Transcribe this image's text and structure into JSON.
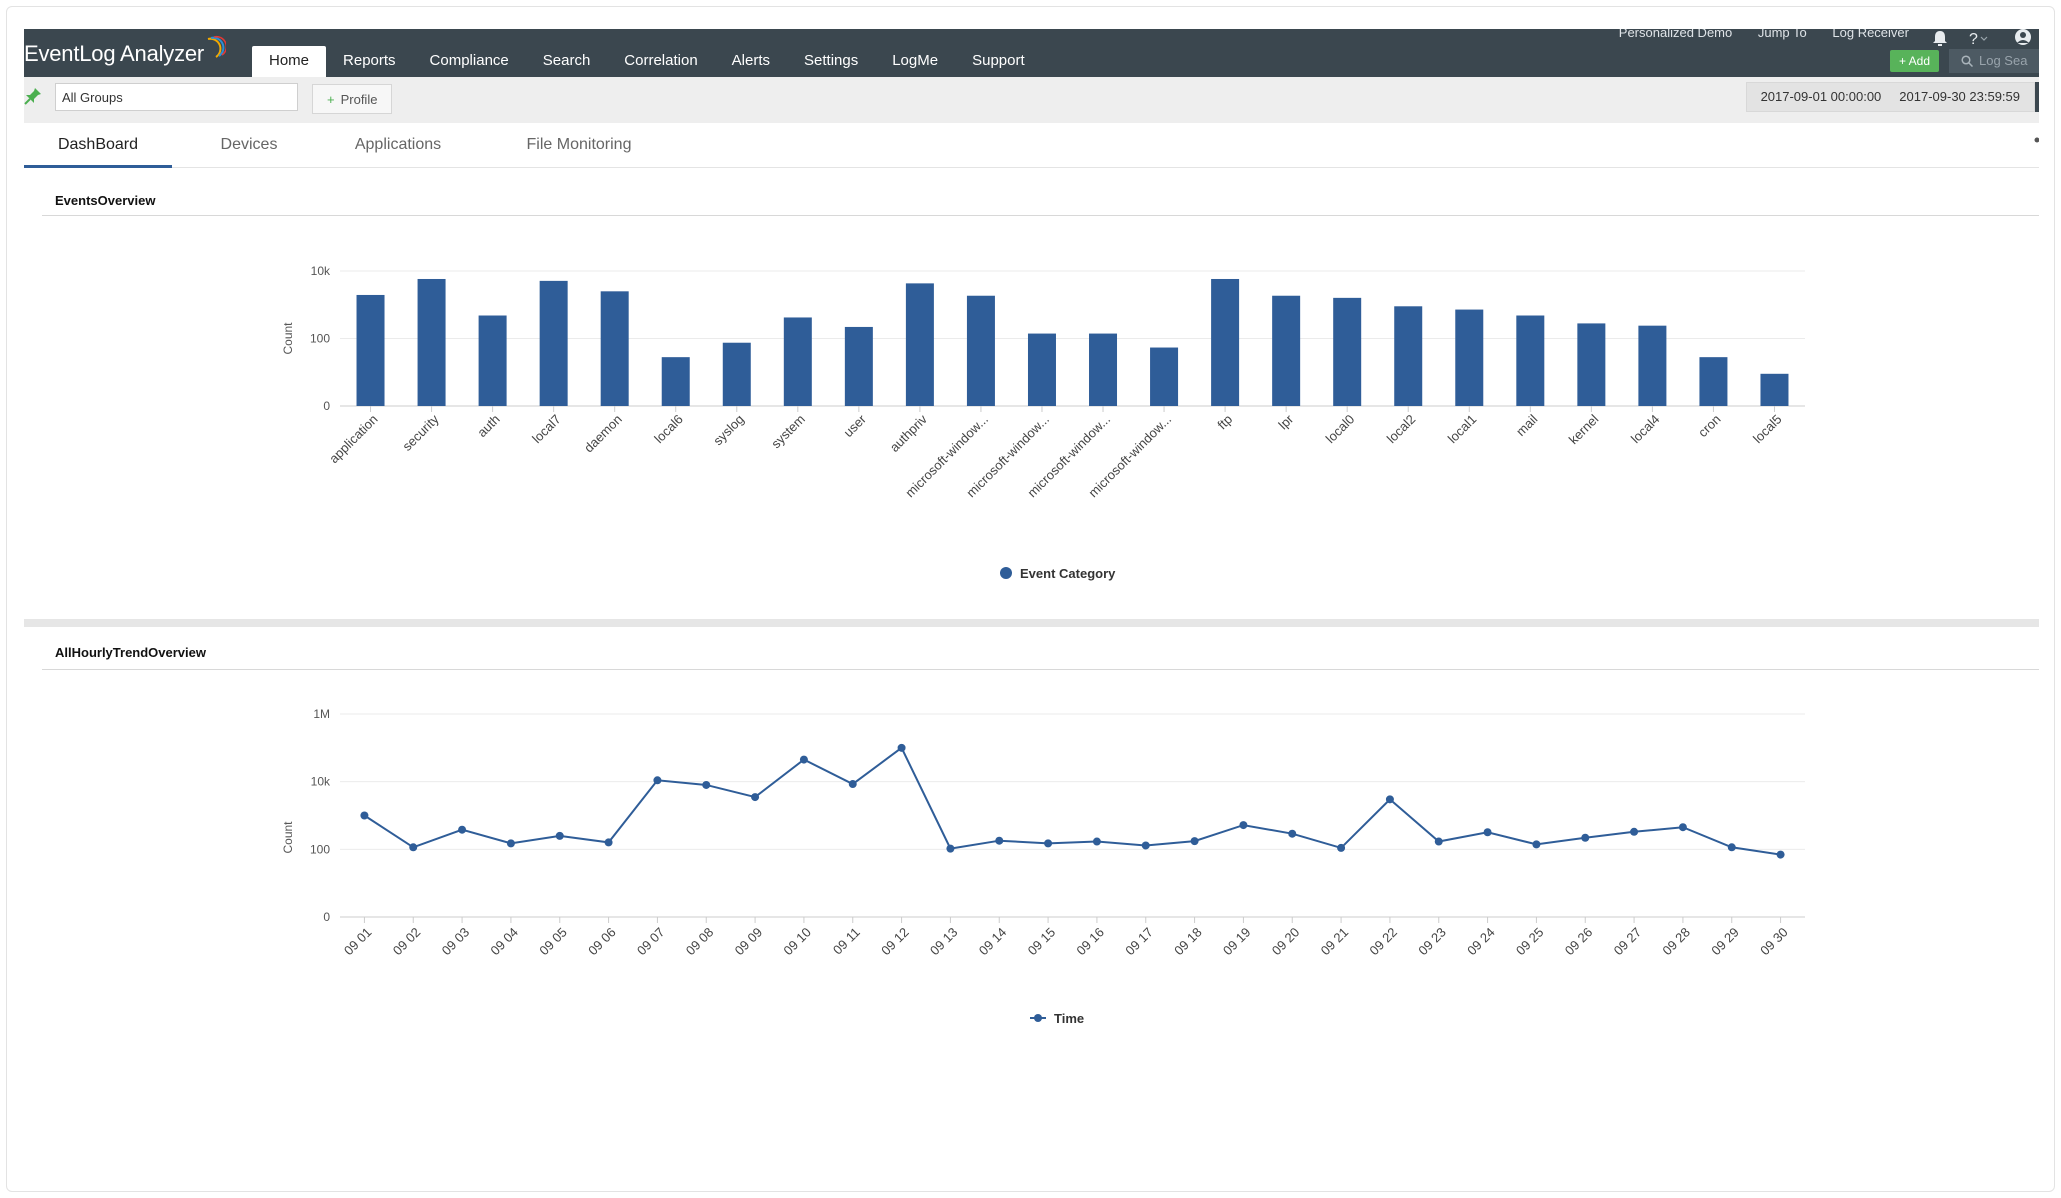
{
  "app": {
    "title": "EventLog Analyzer"
  },
  "top_links": [
    "Personalized Demo",
    "Jump To",
    "Log Receiver"
  ],
  "nav": [
    "Home",
    "Reports",
    "Compliance",
    "Search",
    "Correlation",
    "Alerts",
    "Settings",
    "LogMe",
    "Support"
  ],
  "toolbar": {
    "add_label": "Add",
    "search_placeholder": "Log Sea",
    "group_value": "All Groups",
    "profile_label": "Profile",
    "date_from": "2017-09-01 00:00:00",
    "date_to": "2017-09-30 23:59:59"
  },
  "tabs": [
    "DashBoard",
    "Devices",
    "Applications",
    "File Monitoring"
  ],
  "colors": {
    "series": "#2f5d98",
    "topbar": "#3b474f",
    "add": "#58b35a"
  },
  "icons": [
    "pin-icon",
    "plus-icon",
    "bell-icon",
    "help-icon",
    "user-icon",
    "search-icon"
  ],
  "chart_data": [
    {
      "title": "EventsOverview",
      "type": "bar",
      "ylabel": "Count",
      "yscale": "log",
      "yticks": [
        "0",
        "100",
        "10k"
      ],
      "ylim": [
        1,
        10000
      ],
      "categories": [
        "application",
        "security",
        "auth",
        "local7",
        "daemon",
        "local6",
        "syslog",
        "system",
        "user",
        "authpriv",
        "microsoft-window...",
        "microsoft-window...",
        "microsoft-window...",
        "microsoft-window...",
        "ftp",
        "lpr",
        "local0",
        "local2",
        "local1",
        "mail",
        "kernel",
        "local4",
        "cron",
        "local5"
      ],
      "series": [
        {
          "name": "Event Category",
          "values": [
            1950,
            5800,
            480,
            5100,
            2500,
            28,
            75,
            420,
            220,
            4300,
            1850,
            140,
            140,
            54,
            5800,
            1850,
            1600,
            900,
            720,
            480,
            280,
            240,
            28,
            9
          ]
        }
      ],
      "legend": "bottom"
    },
    {
      "title": "AllHourlyTrendOverview",
      "type": "line",
      "ylabel": "Count",
      "yscale": "log",
      "yticks": [
        "0",
        "100",
        "10k",
        "1M"
      ],
      "ylim": [
        1,
        1000000
      ],
      "x": [
        "09 01",
        "09 02",
        "09 03",
        "09 04",
        "09 05",
        "09 06",
        "09 07",
        "09 08",
        "09 09",
        "09 10",
        "09 11",
        "09 12",
        "09 13",
        "09 14",
        "09 15",
        "09 16",
        "09 17",
        "09 18",
        "09 19",
        "09 20",
        "09 21",
        "09 22",
        "09 23",
        "09 24",
        "09 25",
        "09 26",
        "09 27",
        "09 28",
        "09 29",
        "09 30"
      ],
      "series": [
        {
          "name": "Time",
          "values": [
            1000,
            115,
            380,
            150,
            250,
            160,
            11000,
            8000,
            3500,
            45000,
            8500,
            100000,
            105,
            180,
            150,
            170,
            130,
            175,
            520,
            290,
            110,
            3000,
            170,
            320,
            140,
            220,
            330,
            450,
            115,
            70
          ]
        }
      ],
      "legend": "bottom"
    }
  ]
}
